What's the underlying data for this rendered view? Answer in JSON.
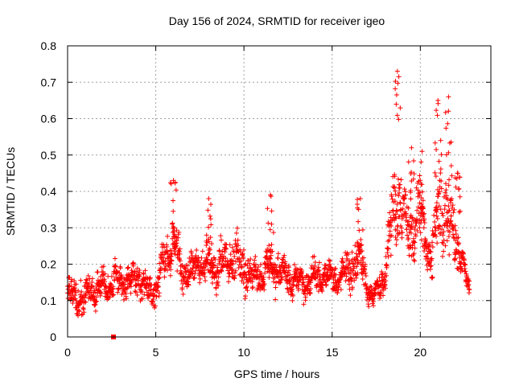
{
  "chart_data": {
    "type": "scatter",
    "title": "Day 156 of 2024, SRMTID for receiver igeo",
    "xlabel": "GPS time / hours",
    "ylabel": "SRMTID / TECUs",
    "xlim": [
      0,
      24
    ],
    "ylim": [
      0,
      0.8
    ],
    "xticks": [
      0,
      5,
      10,
      15,
      20
    ],
    "yticks": [
      0,
      0.1,
      0.2,
      0.3,
      0.4,
      0.5,
      0.6,
      0.7,
      0.8
    ],
    "xtick_labels": [
      "0",
      "5",
      "10",
      "15",
      "20"
    ],
    "ytick_labels": [
      "0",
      "0.1",
      "0.2",
      "0.3",
      "0.4",
      "0.5",
      "0.6",
      "0.7",
      "0.8"
    ],
    "grid": true,
    "marker": "+",
    "series_color": "#ff0000",
    "series": [
      {
        "name": "SRMTID",
        "envelope": [
          {
            "x": 0.0,
            "y": 0.12,
            "spread": 0.05
          },
          {
            "x": 1.0,
            "y": 0.11,
            "spread": 0.05
          },
          {
            "x": 2.0,
            "y": 0.14,
            "spread": 0.05
          },
          {
            "x": 3.0,
            "y": 0.15,
            "spread": 0.05
          },
          {
            "x": 4.0,
            "y": 0.16,
            "spread": 0.05
          },
          {
            "x": 4.8,
            "y": 0.12,
            "spread": 0.04
          },
          {
            "x": 5.5,
            "y": 0.2,
            "spread": 0.06
          },
          {
            "x": 6.0,
            "y": 0.28,
            "spread": 0.08
          },
          {
            "x": 6.5,
            "y": 0.17,
            "spread": 0.05
          },
          {
            "x": 7.5,
            "y": 0.2,
            "spread": 0.06
          },
          {
            "x": 8.5,
            "y": 0.19,
            "spread": 0.06
          },
          {
            "x": 9.5,
            "y": 0.22,
            "spread": 0.08
          },
          {
            "x": 10.5,
            "y": 0.16,
            "spread": 0.05
          },
          {
            "x": 11.5,
            "y": 0.2,
            "spread": 0.07
          },
          {
            "x": 12.5,
            "y": 0.16,
            "spread": 0.05
          },
          {
            "x": 13.5,
            "y": 0.15,
            "spread": 0.05
          },
          {
            "x": 14.5,
            "y": 0.17,
            "spread": 0.05
          },
          {
            "x": 15.5,
            "y": 0.16,
            "spread": 0.05
          },
          {
            "x": 16.5,
            "y": 0.22,
            "spread": 0.07
          },
          {
            "x": 17.3,
            "y": 0.1,
            "spread": 0.03
          },
          {
            "x": 18.0,
            "y": 0.18,
            "spread": 0.05
          },
          {
            "x": 18.7,
            "y": 0.42,
            "spread": 0.15
          },
          {
            "x": 19.3,
            "y": 0.28,
            "spread": 0.08
          },
          {
            "x": 20.0,
            "y": 0.35,
            "spread": 0.1
          },
          {
            "x": 20.6,
            "y": 0.2,
            "spread": 0.07
          },
          {
            "x": 21.2,
            "y": 0.38,
            "spread": 0.15
          },
          {
            "x": 21.8,
            "y": 0.3,
            "spread": 0.1
          },
          {
            "x": 22.4,
            "y": 0.2,
            "spread": 0.06
          },
          {
            "x": 22.8,
            "y": 0.12,
            "spread": 0.03
          }
        ],
        "peaks": [
          {
            "x": 6.0,
            "y": 0.43
          },
          {
            "x": 8.0,
            "y": 0.38
          },
          {
            "x": 11.5,
            "y": 0.39
          },
          {
            "x": 16.6,
            "y": 0.38
          },
          {
            "x": 18.7,
            "y": 0.73
          },
          {
            "x": 19.5,
            "y": 0.52
          },
          {
            "x": 20.1,
            "y": 0.51
          },
          {
            "x": 21.0,
            "y": 0.65
          },
          {
            "x": 21.6,
            "y": 0.66
          },
          {
            "x": 22.1,
            "y": 0.45
          }
        ]
      }
    ],
    "marker_square": {
      "x": 2.6,
      "y": 0.0
    }
  }
}
